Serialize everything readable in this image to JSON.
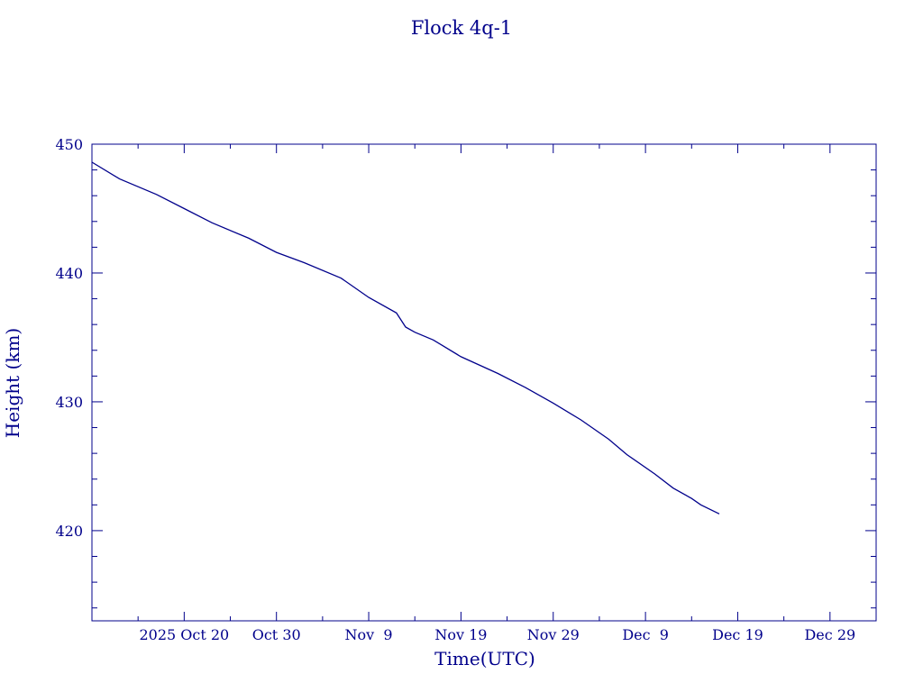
{
  "chart_data": {
    "type": "line",
    "title": "Flock 4q-1",
    "xlabel": "Time(UTC)",
    "ylabel": "Height (km)",
    "x_axis": {
      "type": "date",
      "range": [
        "2025-10-10",
        "2026-01-03"
      ],
      "ticks": [
        {
          "date": "2025-10-20",
          "label": "2025 Oct 20"
        },
        {
          "date": "2025-10-30",
          "label": "Oct 30"
        },
        {
          "date": "2025-11-09",
          "label": "Nov  9"
        },
        {
          "date": "2025-11-19",
          "label": "Nov 19"
        },
        {
          "date": "2025-11-29",
          "label": "Nov 29"
        },
        {
          "date": "2025-12-09",
          "label": "Dec  9"
        },
        {
          "date": "2025-12-19",
          "label": "Dec 19"
        },
        {
          "date": "2025-12-29",
          "label": "Dec 29"
        }
      ]
    },
    "y_axis": {
      "range": [
        413,
        450
      ],
      "ticks": [
        420,
        430,
        440,
        450
      ],
      "minor_step": 2
    },
    "grid": false,
    "color": "#00008b",
    "series": [
      {
        "points": [
          [
            "2025-10-10",
            448.6
          ],
          [
            "2025-10-13",
            447.3
          ],
          [
            "2025-10-17",
            446.1
          ],
          [
            "2025-10-20",
            445.0
          ],
          [
            "2025-10-23",
            443.9
          ],
          [
            "2025-10-27",
            442.7
          ],
          [
            "2025-10-30",
            441.6
          ],
          [
            "2025-11-02",
            440.8
          ],
          [
            "2025-11-06",
            439.6
          ],
          [
            "2025-11-09",
            438.1
          ],
          [
            "2025-11-12",
            436.9
          ],
          [
            "2025-11-13",
            435.8
          ],
          [
            "2025-11-14",
            435.4
          ],
          [
            "2025-11-16",
            434.8
          ],
          [
            "2025-11-19",
            433.5
          ],
          [
            "2025-11-23",
            432.2
          ],
          [
            "2025-11-26",
            431.1
          ],
          [
            "2025-11-29",
            429.9
          ],
          [
            "2025-12-02",
            428.6
          ],
          [
            "2025-12-05",
            427.1
          ],
          [
            "2025-12-07",
            425.9
          ],
          [
            "2025-12-10",
            424.4
          ],
          [
            "2025-12-12",
            423.3
          ],
          [
            "2025-12-14",
            422.5
          ],
          [
            "2025-12-15",
            422.0
          ],
          [
            "2025-12-17",
            421.3
          ]
        ]
      }
    ]
  }
}
